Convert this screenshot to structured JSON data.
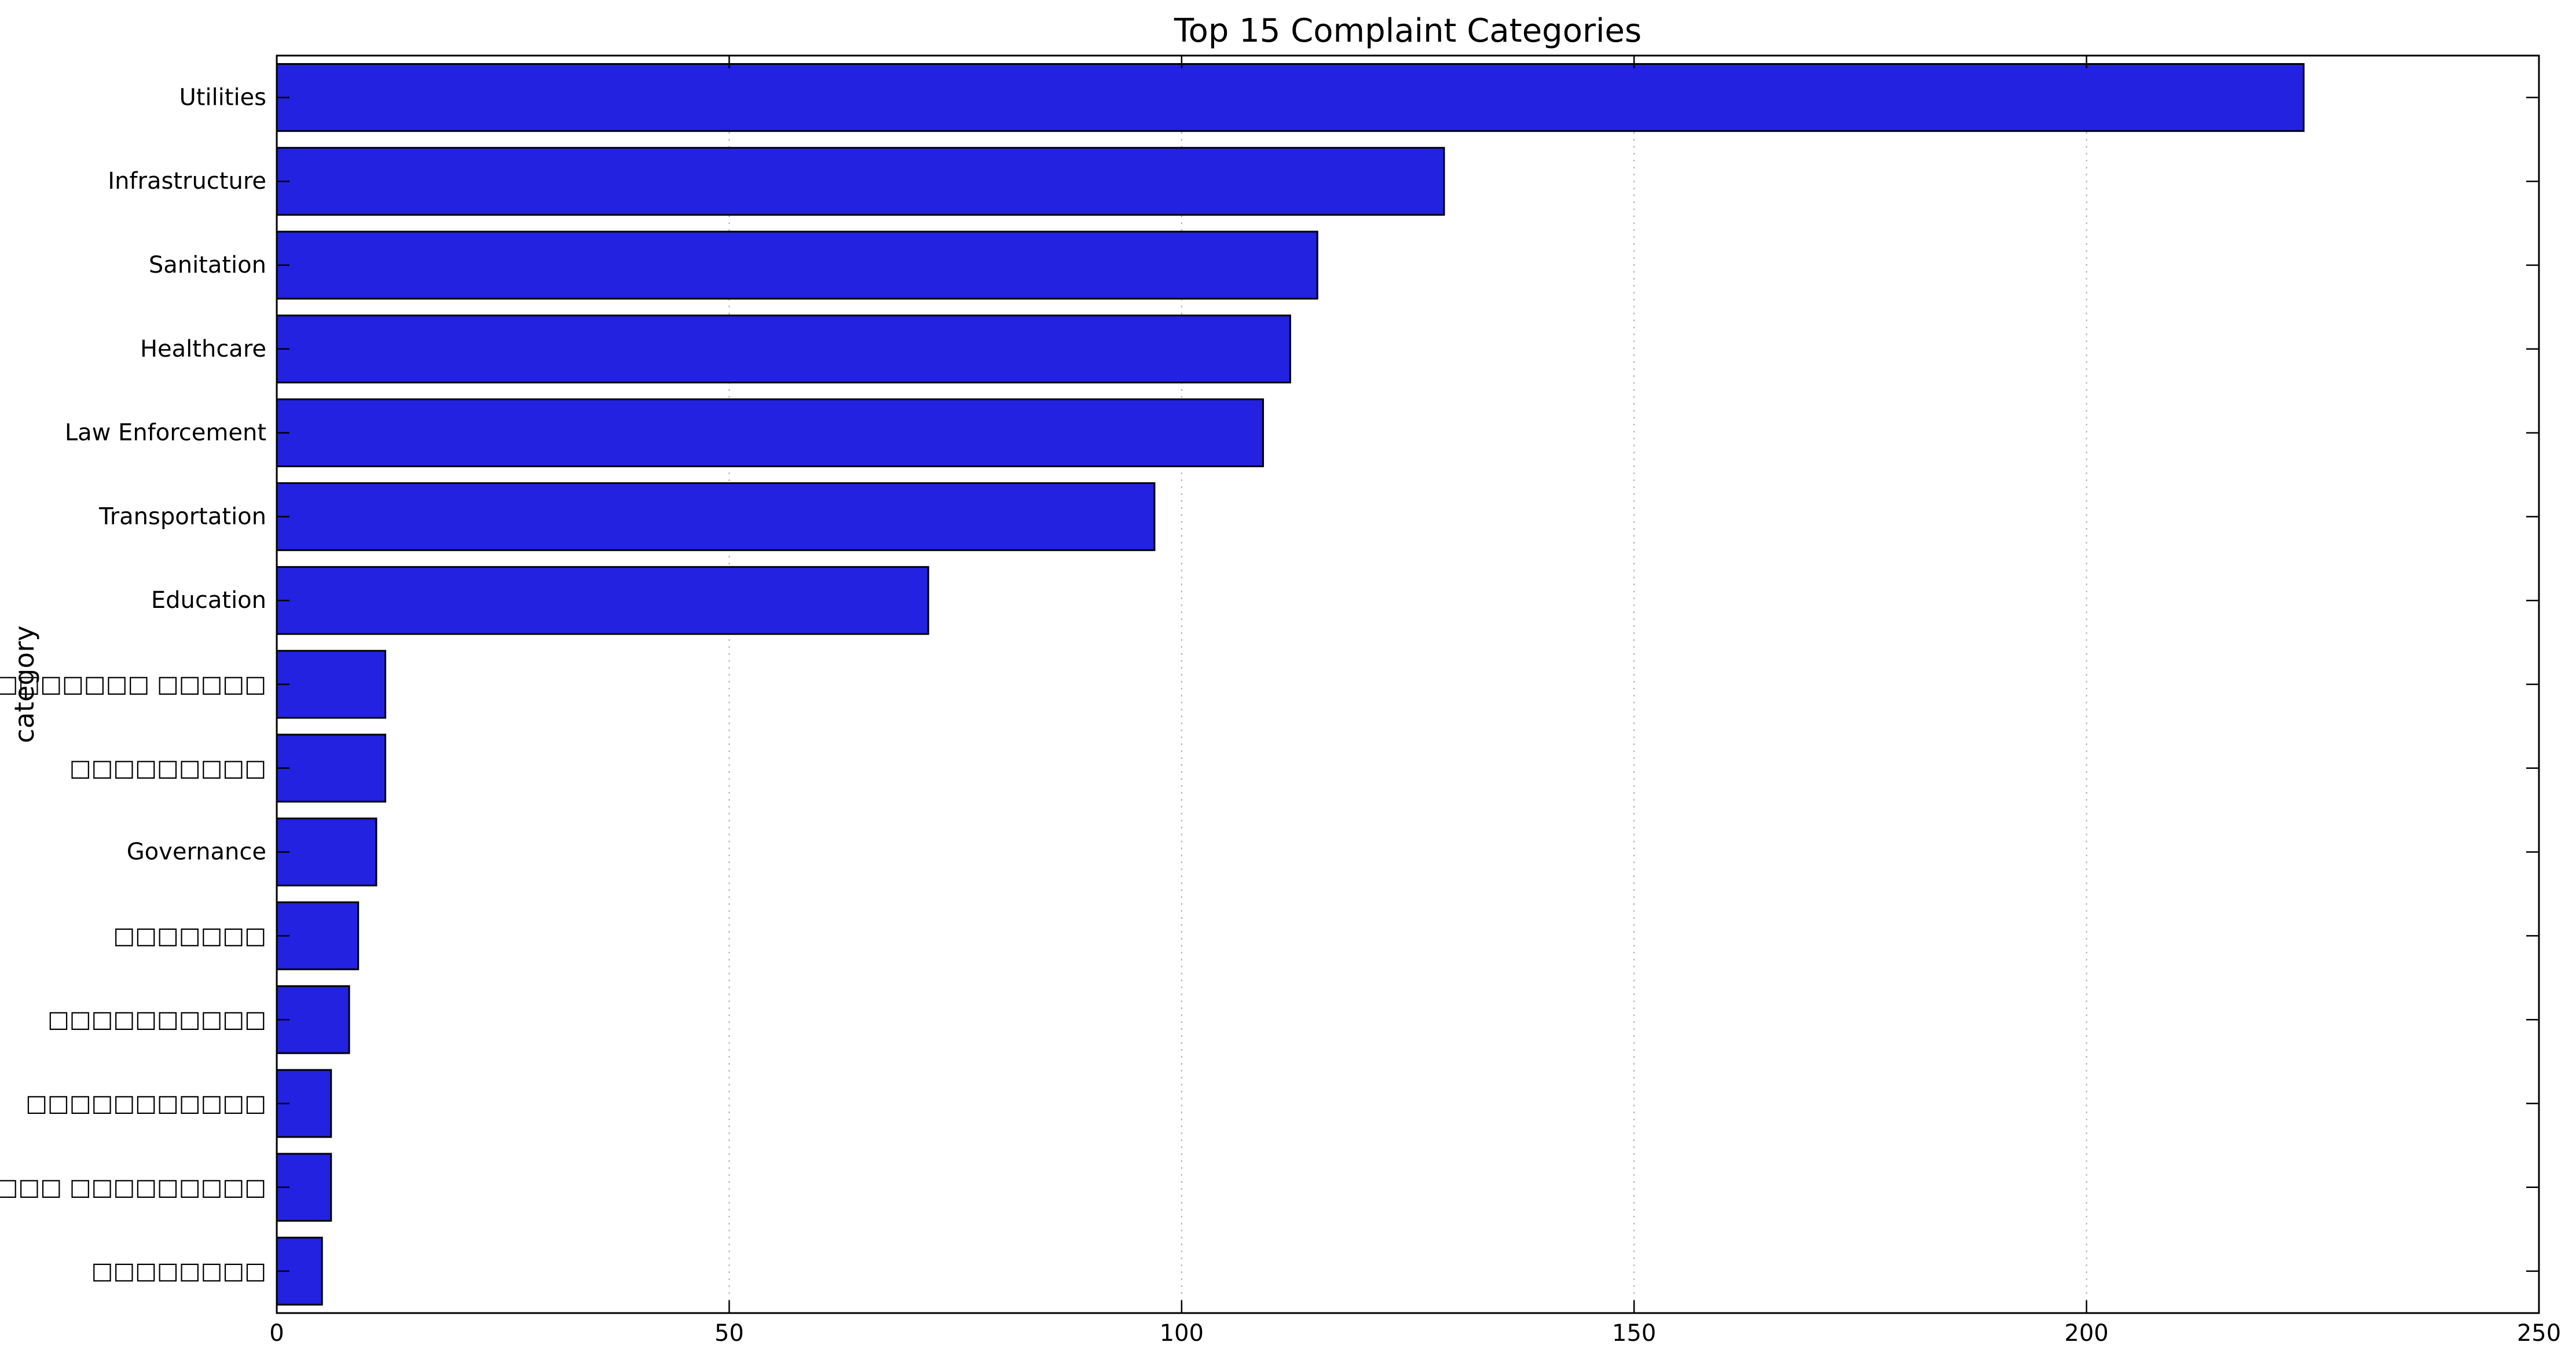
{
  "chart_data": {
    "type": "bar",
    "orientation": "horizontal",
    "title": "Top 15 Complaint Categories",
    "xlabel": "",
    "ylabel": "category",
    "xlim": [
      0,
      250
    ],
    "xticks": [
      0,
      50,
      100,
      150,
      200,
      250
    ],
    "grid": "vertical dotted",
    "bar_color": "#2222e0",
    "categories": [
      "Utilities",
      "Infrastructure",
      "Sanitation",
      "Healthcare",
      "Law Enforcement",
      "Transportation",
      "Education",
      "□□□□□□□□□ □□□□□",
      "□□□□□□□□□",
      "Governance",
      "□□□□□□□",
      "□□□□□□□□□□",
      "□□□□□□□□□□□",
      "□□□□□ □□□□□□□□□",
      "□□□□□□□□"
    ],
    "values": [
      224,
      129,
      115,
      112,
      109,
      97,
      72,
      12,
      12,
      11,
      9,
      8,
      6,
      6,
      5
    ]
  }
}
